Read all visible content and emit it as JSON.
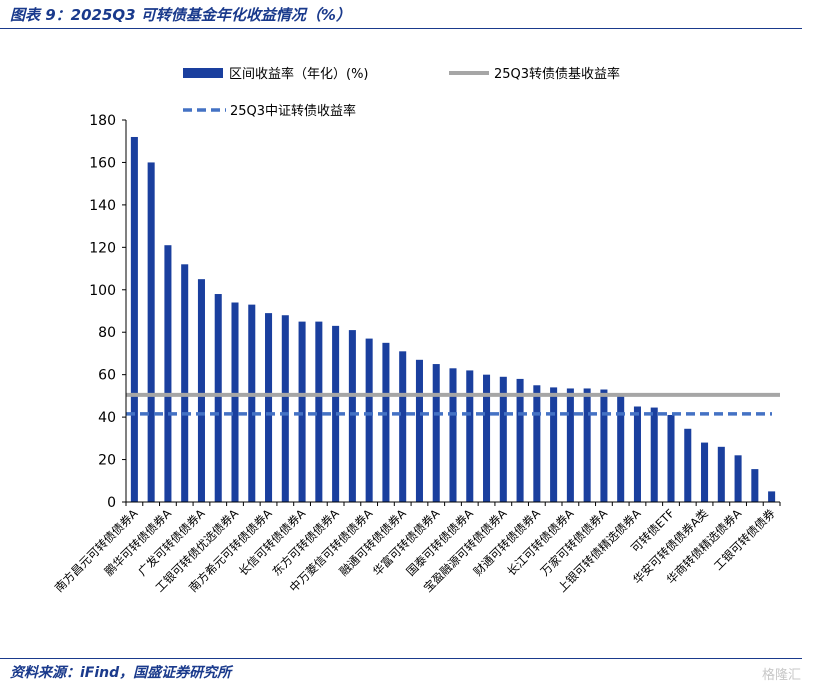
{
  "title": "图表 9：2025Q3 可转债基金年化收益情况（%）",
  "source": "资料来源：iFind，国盛证券研究所",
  "watermark": "格隆汇",
  "colors": {
    "bar": "#1a3f9e",
    "avg_line": "#a6a6a6",
    "index_line": "#4472c4",
    "accent": "#1a3a8c"
  },
  "chart_data": {
    "type": "bar",
    "title": "",
    "xlabel": "",
    "ylabel": "",
    "ylim": [
      0,
      180
    ],
    "yticks": [
      0,
      20,
      40,
      60,
      80,
      100,
      120,
      140,
      160,
      180
    ],
    "legend_placement": "top",
    "categories": [
      "南方昌元可转债债券A",
      "",
      "鹏华可转债债券A",
      "",
      "广发可转债债券A",
      "",
      "工银可转债优选债券A",
      "",
      "南方希元可转债债券A",
      "",
      "长信可转债债券A",
      "",
      "东方可转债债券A",
      "",
      "中万菱信可转债债券A",
      "",
      "融通可转债债券A",
      "",
      "华富可转债债券A",
      "",
      "国泰可转债债券A",
      "",
      "宝盈融源可转债债券A",
      "",
      "财通可转债债券A",
      "",
      "长江可转债债券A",
      "",
      "万家可转债债券A",
      "",
      "上银可转债精选债券A",
      "",
      "可转债ETF",
      "",
      "华安可转债债券A类",
      "",
      "华商转债精选债券A",
      "",
      "工银可转债债券"
    ],
    "series": [
      {
        "name": "区间收益率（年化）(%)",
        "type": "bar",
        "values": [
          172,
          160,
          121,
          112,
          105,
          98,
          94,
          93,
          89,
          88,
          85,
          85,
          83,
          81,
          77,
          75,
          71,
          67,
          65,
          63,
          62,
          60,
          59,
          58,
          55,
          54,
          53.5,
          53.5,
          53,
          50,
          45,
          44.5,
          41,
          34.5,
          28,
          26,
          22,
          15.5,
          5
        ]
      },
      {
        "name": "25Q3转债债基收益率",
        "type": "hline",
        "value": 50.5
      },
      {
        "name": "25Q3中证转债收益率",
        "type": "hline",
        "value": 41.5
      }
    ]
  }
}
